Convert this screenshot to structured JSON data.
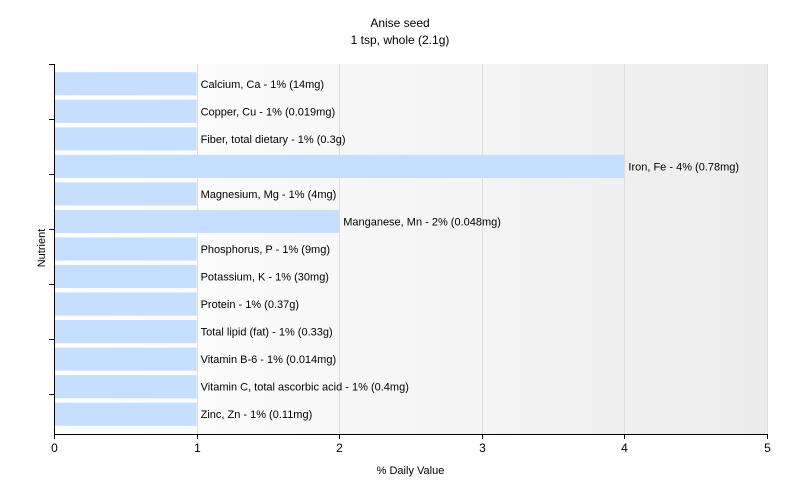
{
  "chart_data": {
    "type": "bar",
    "orientation": "horizontal",
    "title": "Anise seed",
    "subtitle": "1 tsp, whole (2.1g)",
    "xlabel": "% Daily Value",
    "ylabel": "Nutrient",
    "xlim": [
      0,
      5
    ],
    "xticks": [
      "0",
      "1",
      "2",
      "3",
      "4",
      "5"
    ],
    "grid": true,
    "bar_color": "#c6deff",
    "categories": [
      "Calcium, Ca",
      "Copper, Cu",
      "Fiber, total dietary",
      "Iron, Fe",
      "Magnesium, Mg",
      "Manganese, Mn",
      "Phosphorus, P",
      "Potassium, K",
      "Protein",
      "Total lipid (fat)",
      "Vitamin B-6",
      "Vitamin C, total ascorbic acid",
      "Zinc, Zn"
    ],
    "values": [
      1,
      1,
      1,
      4,
      1,
      2,
      1,
      1,
      1,
      1,
      1,
      1,
      1
    ],
    "labels": [
      "Calcium, Ca - 1% (14mg)",
      "Copper, Cu - 1% (0.019mg)",
      "Fiber, total dietary - 1% (0.3g)",
      "Iron, Fe - 4% (0.78mg)",
      "Magnesium, Mg - 1% (4mg)",
      "Manganese, Mn - 2% (0.048mg)",
      "Phosphorus, P - 1% (9mg)",
      "Potassium, K - 1% (30mg)",
      "Protein - 1% (0.37g)",
      "Total lipid (fat) - 1% (0.33g)",
      "Vitamin B-6 - 1% (0.014mg)",
      "Vitamin C, total ascorbic acid - 1% (0.4mg)",
      "Zinc, Zn - 1% (0.11mg)"
    ]
  }
}
